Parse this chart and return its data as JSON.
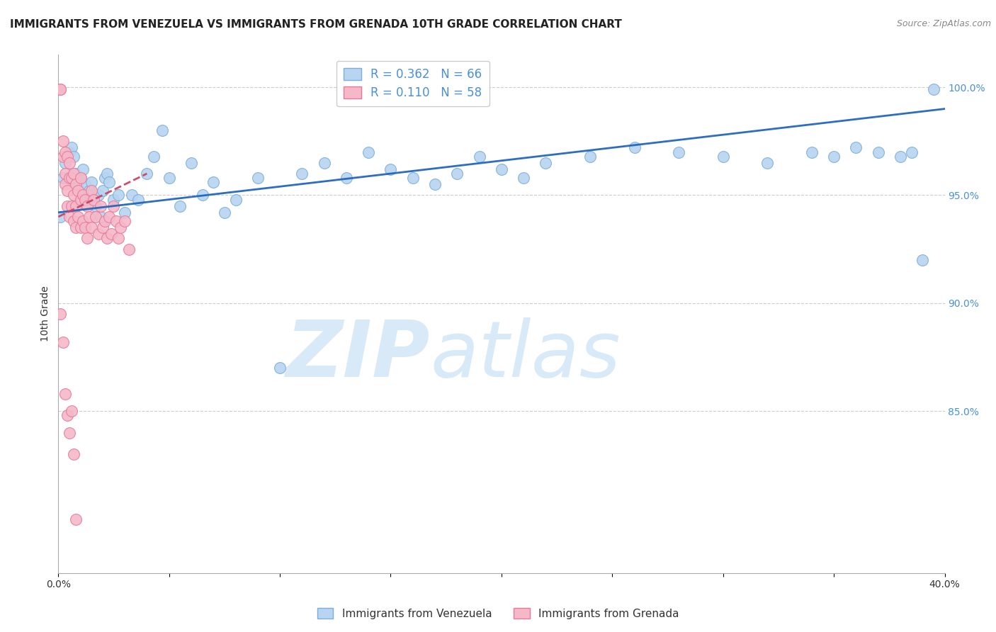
{
  "title": "IMMIGRANTS FROM VENEZUELA VS IMMIGRANTS FROM GRENADA 10TH GRADE CORRELATION CHART",
  "source": "Source: ZipAtlas.com",
  "xlabel": "",
  "ylabel": "10th Grade",
  "series": [
    {
      "name": "Immigrants from Venezuela",
      "R": 0.362,
      "N": 66,
      "color": "#b8d4f0",
      "edge_color": "#7aaedc",
      "line_color": "#2266bb",
      "line_style": "solid",
      "x": [
        0.001,
        0.002,
        0.003,
        0.004,
        0.005,
        0.006,
        0.007,
        0.008,
        0.009,
        0.01,
        0.011,
        0.012,
        0.013,
        0.013,
        0.014,
        0.015,
        0.016,
        0.017,
        0.018,
        0.019,
        0.02,
        0.021,
        0.022,
        0.023,
        0.025,
        0.027,
        0.03,
        0.033,
        0.036,
        0.04,
        0.043,
        0.047,
        0.05,
        0.055,
        0.06,
        0.065,
        0.07,
        0.075,
        0.08,
        0.09,
        0.1,
        0.11,
        0.12,
        0.13,
        0.14,
        0.15,
        0.16,
        0.17,
        0.18,
        0.19,
        0.2,
        0.21,
        0.22,
        0.24,
        0.26,
        0.28,
        0.3,
        0.32,
        0.34,
        0.35,
        0.36,
        0.37,
        0.38,
        0.385,
        0.39,
        0.395
      ],
      "y": [
        0.94,
        0.958,
        0.965,
        0.968,
        0.97,
        0.972,
        0.968,
        0.96,
        0.955,
        0.958,
        0.962,
        0.955,
        0.95,
        0.948,
        0.952,
        0.956,
        0.948,
        0.945,
        0.95,
        0.94,
        0.952,
        0.958,
        0.96,
        0.956,
        0.948,
        0.95,
        0.942,
        0.95,
        0.948,
        0.96,
        0.968,
        0.98,
        0.958,
        0.945,
        0.965,
        0.95,
        0.956,
        0.942,
        0.948,
        0.958,
        0.87,
        0.96,
        0.965,
        0.958,
        0.97,
        0.962,
        0.958,
        0.955,
        0.96,
        0.968,
        0.962,
        0.958,
        0.965,
        0.968,
        0.972,
        0.97,
        0.968,
        0.965,
        0.97,
        0.968,
        0.972,
        0.97,
        0.968,
        0.97,
        0.92,
        0.999
      ]
    },
    {
      "name": "Immigrants from Grenada",
      "R": 0.11,
      "N": 58,
      "color": "#f5b8c8",
      "edge_color": "#e87a98",
      "line_color": "#cc4466",
      "line_style": "dashed",
      "x": [
        0.001,
        0.001,
        0.002,
        0.002,
        0.003,
        0.003,
        0.003,
        0.004,
        0.004,
        0.004,
        0.005,
        0.005,
        0.005,
        0.006,
        0.006,
        0.007,
        0.007,
        0.007,
        0.008,
        0.008,
        0.008,
        0.009,
        0.009,
        0.01,
        0.01,
        0.01,
        0.011,
        0.011,
        0.012,
        0.012,
        0.013,
        0.013,
        0.014,
        0.015,
        0.015,
        0.016,
        0.017,
        0.018,
        0.019,
        0.02,
        0.021,
        0.022,
        0.023,
        0.024,
        0.025,
        0.026,
        0.027,
        0.028,
        0.03,
        0.032,
        0.001,
        0.002,
        0.003,
        0.004,
        0.005,
        0.006,
        0.007,
        0.008
      ],
      "y": [
        0.999,
        0.999,
        0.975,
        0.968,
        0.97,
        0.96,
        0.955,
        0.968,
        0.952,
        0.945,
        0.965,
        0.958,
        0.94,
        0.958,
        0.945,
        0.96,
        0.95,
        0.938,
        0.955,
        0.945,
        0.935,
        0.952,
        0.94,
        0.958,
        0.948,
        0.935,
        0.95,
        0.938,
        0.948,
        0.935,
        0.945,
        0.93,
        0.94,
        0.952,
        0.935,
        0.948,
        0.94,
        0.932,
        0.945,
        0.935,
        0.938,
        0.93,
        0.94,
        0.932,
        0.945,
        0.938,
        0.93,
        0.935,
        0.938,
        0.925,
        0.895,
        0.882,
        0.858,
        0.848,
        0.84,
        0.85,
        0.83,
        0.8
      ]
    }
  ],
  "trend_lines": [
    {
      "x0": 0.0,
      "y0": 0.942,
      "x1": 0.4,
      "y1": 0.99,
      "color": "#2266bb",
      "line_style": "solid"
    },
    {
      "x0": 0.0,
      "y0": 0.94,
      "x1": 0.04,
      "y1": 0.96,
      "color": "#cc4466",
      "line_style": "dashed"
    }
  ],
  "xlim": [
    0.0,
    0.4
  ],
  "ylim": [
    0.775,
    1.015
  ],
  "xticks": [
    0.0,
    0.05,
    0.1,
    0.15,
    0.2,
    0.25,
    0.3,
    0.35,
    0.4
  ],
  "xticklabels": [
    "0.0%",
    "",
    "",
    "",
    "",
    "",
    "",
    "",
    "40.0%"
  ],
  "yticks_right": [
    0.85,
    0.9,
    0.95,
    1.0
  ],
  "ytick_labels_right": [
    "85.0%",
    "90.0%",
    "95.0%",
    "100.0%"
  ],
  "grid_color": "#cccccc",
  "background_color": "#ffffff",
  "watermark": "ZIPatlas",
  "watermark_color": "#d8eaf8",
  "title_fontsize": 11,
  "axis_label_fontsize": 10,
  "tick_fontsize": 10,
  "legend_fontsize": 12
}
